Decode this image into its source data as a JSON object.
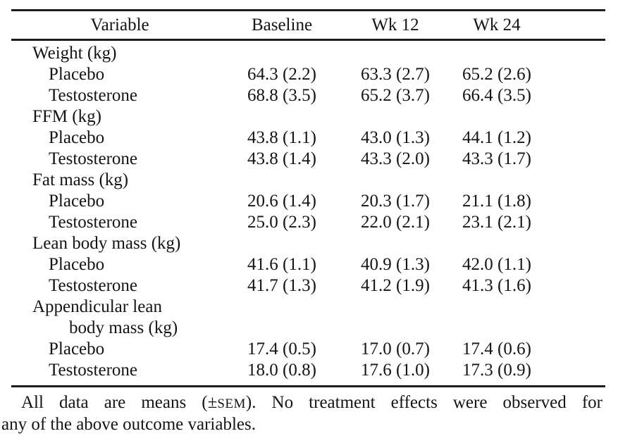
{
  "page": {
    "background_color": "#ffffff",
    "text_color": "#141414",
    "rule_color": "#1c1c1c"
  },
  "table": {
    "columns": [
      "Variable",
      "Baseline",
      "Wk 12",
      "Wk 24"
    ],
    "rows": [
      {
        "type": "category",
        "label": "Weight (kg)",
        "values": [
          "",
          "",
          ""
        ]
      },
      {
        "type": "sub",
        "label": "Placebo",
        "values": [
          "64.3 (2.2)",
          "63.3 (2.7)",
          "65.2 (2.6)"
        ]
      },
      {
        "type": "sub",
        "label": "Testosterone",
        "values": [
          "68.8 (3.5)",
          "65.2 (3.7)",
          "66.4 (3.5)"
        ]
      },
      {
        "type": "category",
        "label": "FFM (kg)",
        "values": [
          "",
          "",
          ""
        ]
      },
      {
        "type": "sub",
        "label": "Placebo",
        "values": [
          "43.8 (1.1)",
          "43.0 (1.3)",
          "44.1 (1.2)"
        ]
      },
      {
        "type": "sub",
        "label": "Testosterone",
        "values": [
          "43.8 (1.4)",
          "43.3 (2.0)",
          "43.3 (1.7)"
        ]
      },
      {
        "type": "category",
        "label": "Fat mass (kg)",
        "values": [
          "",
          "",
          ""
        ]
      },
      {
        "type": "sub",
        "label": "Placebo",
        "values": [
          "20.6 (1.4)",
          "20.3 (1.7)",
          "21.1 (1.8)"
        ]
      },
      {
        "type": "sub",
        "label": "Testosterone",
        "values": [
          "25.0 (2.3)",
          "22.0 (2.1)",
          "23.1 (2.1)"
        ]
      },
      {
        "type": "category",
        "label": "Lean body mass (kg)",
        "values": [
          "",
          "",
          ""
        ]
      },
      {
        "type": "sub",
        "label": "Placebo",
        "values": [
          "41.6 (1.1)",
          "40.9 (1.3)",
          "42.0 (1.1)"
        ]
      },
      {
        "type": "sub",
        "label": "Testosterone",
        "values": [
          "41.7 (1.3)",
          "41.2 (1.9)",
          "41.3 (1.6)"
        ]
      },
      {
        "type": "category",
        "label": "Appendicular lean",
        "values": [
          "",
          "",
          ""
        ]
      },
      {
        "type": "category-cont",
        "label": "body mass (kg)",
        "values": [
          "",
          "",
          ""
        ]
      },
      {
        "type": "sub",
        "label": "Placebo",
        "values": [
          "17.4 (0.5)",
          "17.0 (0.7)",
          "17.4 (0.6)"
        ]
      },
      {
        "type": "sub",
        "label": "Testosterone",
        "values": [
          "18.0 (0.8)",
          "17.6 (1.0)",
          "17.3 (0.9)"
        ]
      }
    ],
    "footnote": {
      "line1_pre": "All data are means (±",
      "line1_smallcaps": "SEM",
      "line1_post": "). No treatment effects were observed for",
      "line2": "any of the above outcome variables."
    }
  }
}
